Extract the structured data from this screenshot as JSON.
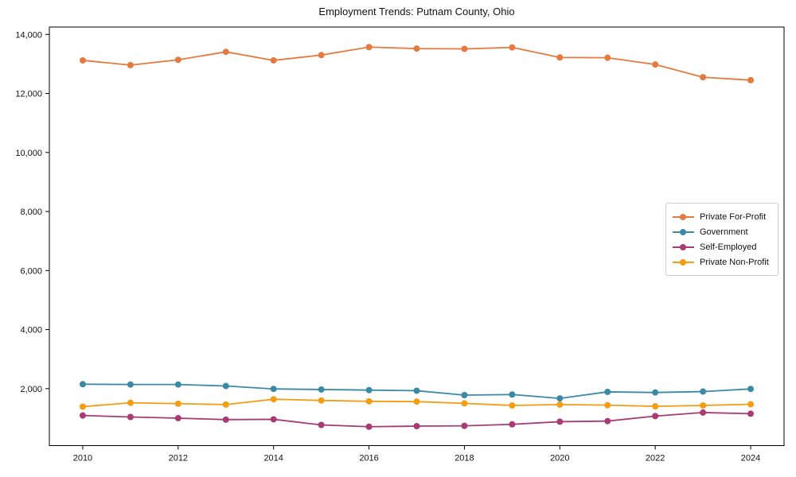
{
  "chart_data": {
    "type": "line",
    "title": "Employment Trends: Putnam County, Ohio",
    "xlabel": "",
    "ylabel": "",
    "grid": false,
    "legend_position": "center right",
    "xlim": [
      2009.3,
      2024.7
    ],
    "ylim": [
      70,
      14250
    ],
    "xticks": [
      2010,
      2012,
      2014,
      2016,
      2018,
      2020,
      2022,
      2024
    ],
    "yticks": [
      2000,
      4000,
      6000,
      8000,
      10000,
      12000,
      14000
    ],
    "x": [
      2010,
      2011,
      2012,
      2013,
      2014,
      2015,
      2016,
      2017,
      2018,
      2019,
      2020,
      2021,
      2022,
      2023,
      2024
    ],
    "series": [
      {
        "name": "Private For-Profit",
        "color": "#E6793D",
        "values": [
          13120,
          12960,
          13140,
          13410,
          13120,
          13300,
          13570,
          13520,
          13510,
          13560,
          13220,
          13210,
          12980,
          12550,
          12450
        ]
      },
      {
        "name": "Government",
        "color": "#3A8AA6",
        "values": [
          2150,
          2140,
          2140,
          2090,
          1990,
          1970,
          1950,
          1930,
          1780,
          1800,
          1670,
          1890,
          1870,
          1900,
          1990
        ]
      },
      {
        "name": "Self-Employed",
        "color": "#A93A74",
        "values": [
          1090,
          1040,
          1000,
          950,
          960,
          770,
          710,
          730,
          740,
          790,
          880,
          900,
          1070,
          1190,
          1150
        ]
      },
      {
        "name": "Private Non-Profit",
        "color": "#F49C12",
        "values": [
          1390,
          1520,
          1490,
          1460,
          1640,
          1600,
          1570,
          1560,
          1500,
          1430,
          1460,
          1440,
          1400,
          1430,
          1470
        ]
      }
    ]
  }
}
